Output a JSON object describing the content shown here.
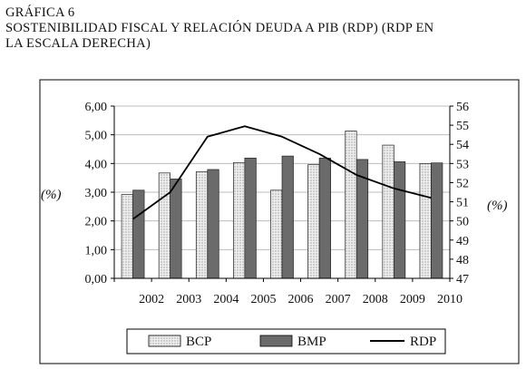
{
  "figure": {
    "label": "GRÁFICA 6",
    "title_line1": "SOSTENIBILIDAD FISCAL Y RELACIÓN DEUDA A PIB (RDP) (RDP EN",
    "title_line2": "LA ESCALA DERECHA)"
  },
  "chart_data": {
    "type": "bar",
    "categories": [
      "2002",
      "2003",
      "2004",
      "2005",
      "2006",
      "2007",
      "2008",
      "2009",
      "2010"
    ],
    "series": [
      {
        "name": "BCP",
        "kind": "bar",
        "axis": "left",
        "color": "#e6e6e6",
        "pattern": "dotted",
        "values": [
          2.92,
          3.67,
          3.71,
          4.03,
          3.07,
          3.96,
          5.13,
          4.64,
          4.0
        ]
      },
      {
        "name": "BMP",
        "kind": "bar",
        "axis": "left",
        "color": "#6b6b6b",
        "values": [
          3.07,
          3.46,
          3.79,
          4.19,
          4.26,
          4.19,
          4.14,
          4.06,
          4.02
        ]
      },
      {
        "name": "RDP",
        "kind": "line",
        "axis": "right",
        "color": "#000000",
        "values": [
          50.1,
          51.5,
          54.4,
          54.95,
          54.4,
          53.5,
          52.4,
          51.7,
          51.2
        ]
      }
    ],
    "ylabel_left": "(%)",
    "ylabel_right": "(%)",
    "ylim_left": [
      0,
      6
    ],
    "ylim_right": [
      47,
      56
    ],
    "yticks_left": [
      "0,00",
      "1,00",
      "2,00",
      "3,00",
      "4,00",
      "5,00",
      "6,00"
    ],
    "yticks_right": [
      "47",
      "48",
      "49",
      "50",
      "51",
      "52",
      "53",
      "54",
      "55",
      "56"
    ],
    "grid": true,
    "legend": "bottom"
  }
}
